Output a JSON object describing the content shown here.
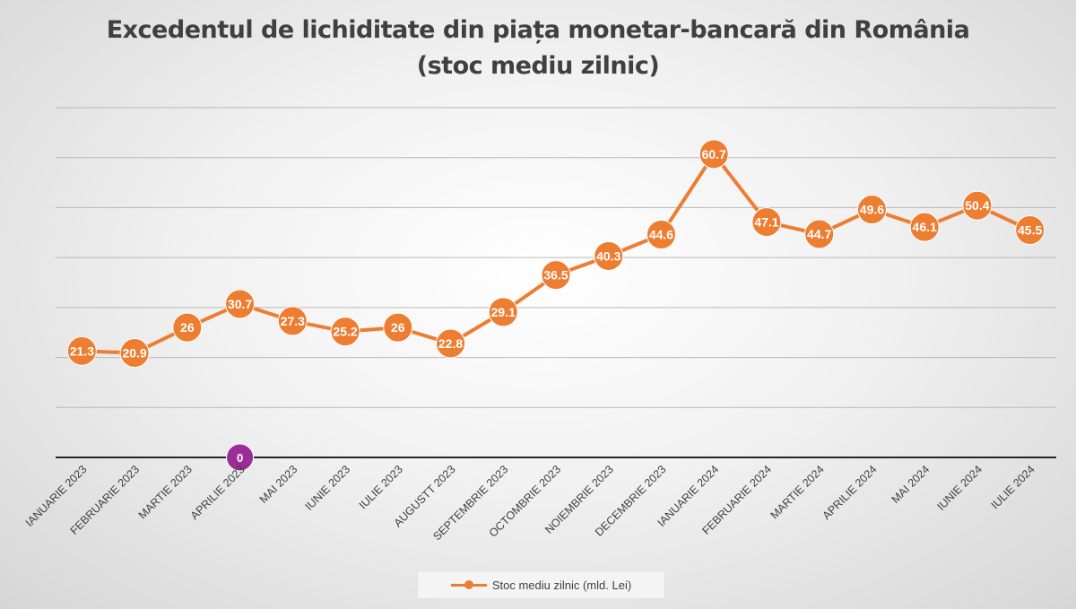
{
  "chart_data": {
    "type": "line",
    "title_lines": [
      "Excedentul de lichiditate din piața monetar-bancară din România",
      "(stoc mediu zilnic)"
    ],
    "categories": [
      "IANUARIE 2023",
      "FEBRUARIE 2023",
      "MARTIE 2023",
      "APRILIE 2023",
      "MAI 2023",
      "IUNIE 2023",
      "IULIE 2023",
      "AUGUSTT 2023",
      "SEPTEMBRIE 2023",
      "OCTOMBRIE 2023",
      "NOIEMBRIE 2023",
      "DECEMBRIE 2023",
      "IANUARIE 2024",
      "FEBRUARIE 2024",
      "MARTIE 2024",
      "APRILIE 2024",
      "MAI 2024",
      "IUNIE 2024",
      "IULIE 2024"
    ],
    "series": [
      {
        "name": "Stoc mediu zilnic (mld. Lei)",
        "color": "#ed7d31",
        "values": [
          21.3,
          20.9,
          26,
          30.7,
          27.3,
          25.2,
          26,
          22.8,
          29.1,
          36.5,
          40.3,
          44.6,
          60.7,
          47.1,
          44.7,
          49.6,
          46.1,
          50.4,
          45.5
        ]
      }
    ],
    "extra_point": {
      "category": "APRILIE 2023",
      "value": 0,
      "label": "0",
      "color": "#9b2e96"
    },
    "ylim": [
      0,
      70
    ],
    "y_gridlines": [
      0,
      10,
      20,
      30,
      40,
      50,
      60,
      70
    ],
    "y_tick_labels_shown": false,
    "grid": true,
    "legend_position": "bottom"
  }
}
